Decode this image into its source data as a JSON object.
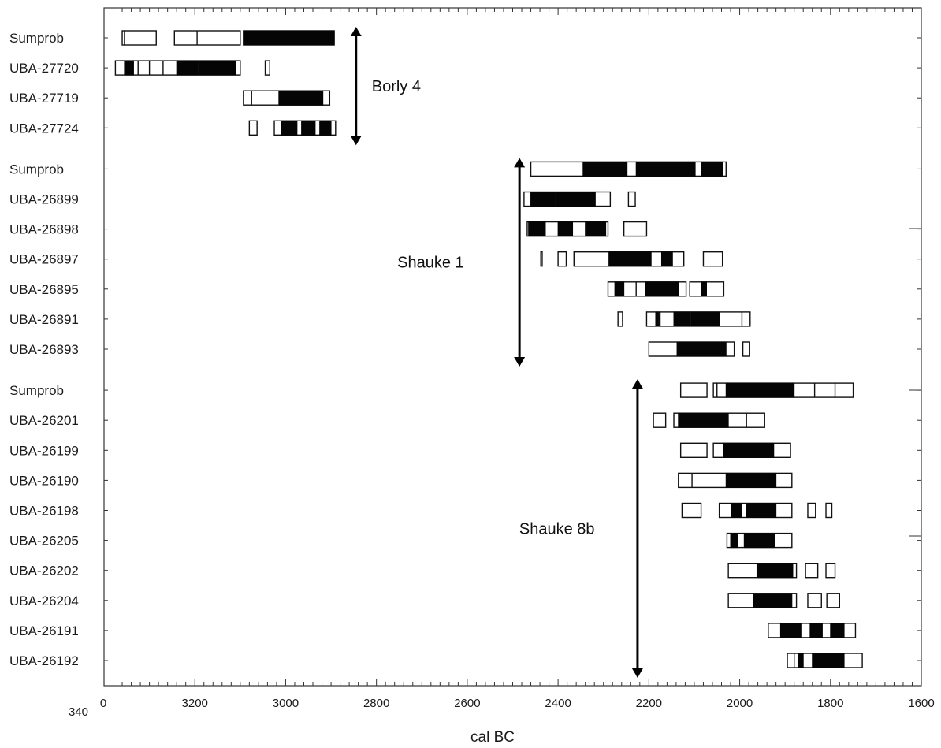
{
  "chart_data": {
    "type": "range",
    "xlabel": "cal BC",
    "x_axis": {
      "min": 3400,
      "max": 1600,
      "reversed": true,
      "ticks": [
        3200,
        3000,
        2800,
        2600,
        2400,
        2200,
        2000,
        1800,
        1600
      ],
      "corner_labels": [
        "340",
        "0"
      ]
    },
    "groups": [
      {
        "name": "Borly 4",
        "arrow_x": 2845,
        "rows": [
          {
            "label": "Sumprob",
            "outline": [
              [
                3360,
                3285
              ],
              [
                3245,
                3100
              ],
              [
                3093,
                2893
              ]
            ],
            "filled": [
              [
                3093,
                2893
              ]
            ],
            "ticks": [
              3355,
              3195
            ]
          },
          {
            "label": "UBA-27720",
            "outline": [
              [
                3375,
                3100
              ],
              [
                3045,
                3035
              ]
            ],
            "filled": [
              [
                3355,
                3335
              ],
              [
                3240,
                3110
              ]
            ],
            "ticks": [
              3325,
              3300,
              3270,
              3192
            ]
          },
          {
            "label": "UBA-27719",
            "outline": [
              [
                3093,
                2903
              ]
            ],
            "filled": [
              [
                3015,
                2918
              ]
            ],
            "ticks": [
              3075
            ]
          },
          {
            "label": "UBA-27724",
            "outline": [
              [
                3080,
                3063
              ],
              [
                3025,
                2890
              ]
            ],
            "filled": [
              [
                3010,
                2975
              ],
              [
                2965,
                2935
              ],
              [
                2925,
                2900
              ]
            ],
            "ticks": []
          }
        ]
      },
      {
        "name": "Shauke 1",
        "arrow_x": 2485,
        "rows": [
          {
            "label": "Sumprob",
            "outline": [
              [
                2460,
                2030
              ]
            ],
            "filled": [
              [
                2345,
                2248
              ],
              [
                2228,
                2098
              ],
              [
                2085,
                2038
              ]
            ],
            "ticks": []
          },
          {
            "label": "UBA-26899",
            "outline": [
              [
                2475,
                2285
              ],
              [
                2245,
                2230
              ]
            ],
            "filled": [
              [
                2460,
                2318
              ]
            ],
            "ticks": [
              2405
            ]
          },
          {
            "label": "UBA-26898",
            "outline": [
              [
                2468,
                2290
              ],
              [
                2255,
                2205
              ]
            ],
            "filled": [
              [
                2465,
                2428
              ],
              [
                2400,
                2368
              ],
              [
                2340,
                2295
              ]
            ],
            "ticks": []
          },
          {
            "label": "UBA-26897",
            "outline": [
              [
                2438,
                2435
              ],
              [
                2400,
                2382
              ],
              [
                2365,
                2123
              ],
              [
                2080,
                2038
              ]
            ],
            "filled": [
              [
                2288,
                2195
              ],
              [
                2172,
                2148
              ]
            ],
            "ticks": []
          },
          {
            "label": "UBA-26895",
            "outline": [
              [
                2290,
                2118
              ],
              [
                2110,
                2035
              ]
            ],
            "filled": [
              [
                2275,
                2255
              ],
              [
                2208,
                2135
              ],
              [
                2085,
                2073
              ]
            ],
            "ticks": [
              2228
            ]
          },
          {
            "label": "UBA-26891",
            "outline": [
              [
                2268,
                2258
              ],
              [
                2205,
                1977
              ]
            ],
            "filled": [
              [
                2185,
                2175
              ],
              [
                2145,
                2045
              ]
            ],
            "ticks": [
              2178,
              2108,
              1995
            ]
          },
          {
            "label": "UBA-26893",
            "outline": [
              [
                2200,
                2012
              ],
              [
                1993,
                1978
              ]
            ],
            "filled": [
              [
                2138,
                2030
              ]
            ],
            "ticks": []
          }
        ]
      },
      {
        "name": "Shauke 8b",
        "arrow_x": 2225,
        "rows": [
          {
            "label": "Sumprob",
            "outline": [
              [
                2130,
                2072
              ],
              [
                2058,
                1750
              ]
            ],
            "filled": [
              [
                2030,
                1880
              ]
            ],
            "ticks": [
              2050,
              1835,
              1790
            ]
          },
          {
            "label": "UBA-26201",
            "outline": [
              [
                2190,
                2163
              ],
              [
                2145,
                1945
              ]
            ],
            "filled": [
              [
                2135,
                2025
              ]
            ],
            "ticks": [
              1985
            ]
          },
          {
            "label": "UBA-26199",
            "outline": [
              [
                2130,
                2072
              ],
              [
                2058,
                1888
              ]
            ],
            "filled": [
              [
                2035,
                1925
              ]
            ],
            "ticks": []
          },
          {
            "label": "UBA-26190",
            "outline": [
              [
                2135,
                1885
              ]
            ],
            "filled": [
              [
                2030,
                1920
              ]
            ],
            "ticks": [
              2105
            ]
          },
          {
            "label": "UBA-26198",
            "outline": [
              [
                2127,
                2085
              ],
              [
                2045,
                1885
              ],
              [
                1850,
                1833
              ],
              [
                1810,
                1797
              ]
            ],
            "filled": [
              [
                2018,
                1995
              ],
              [
                1985,
                1920
              ]
            ],
            "ticks": []
          },
          {
            "label": "UBA-26205",
            "outline": [
              [
                2028,
                1885
              ]
            ],
            "filled": [
              [
                2020,
                2005
              ],
              [
                1990,
                1922
              ]
            ],
            "ticks": []
          },
          {
            "label": "UBA-26202",
            "outline": [
              [
                2025,
                1875
              ],
              [
                1855,
                1828
              ],
              [
                1810,
                1790
              ]
            ],
            "filled": [
              [
                1962,
                1883
              ]
            ],
            "ticks": []
          },
          {
            "label": "UBA-26204",
            "outline": [
              [
                2025,
                1875
              ],
              [
                1850,
                1820
              ],
              [
                1808,
                1780
              ]
            ],
            "filled": [
              [
                1970,
                1885
              ]
            ],
            "ticks": []
          },
          {
            "label": "UBA-26191",
            "outline": [
              [
                1937,
                1745
              ]
            ],
            "filled": [
              [
                1910,
                1865
              ],
              [
                1845,
                1818
              ],
              [
                1800,
                1770
              ]
            ],
            "ticks": []
          },
          {
            "label": "UBA-26192",
            "outline": [
              [
                1895,
                1730
              ]
            ],
            "filled": [
              [
                1870,
                1860
              ],
              [
                1840,
                1770
              ]
            ],
            "ticks": [
              1880
            ]
          }
        ]
      }
    ]
  }
}
